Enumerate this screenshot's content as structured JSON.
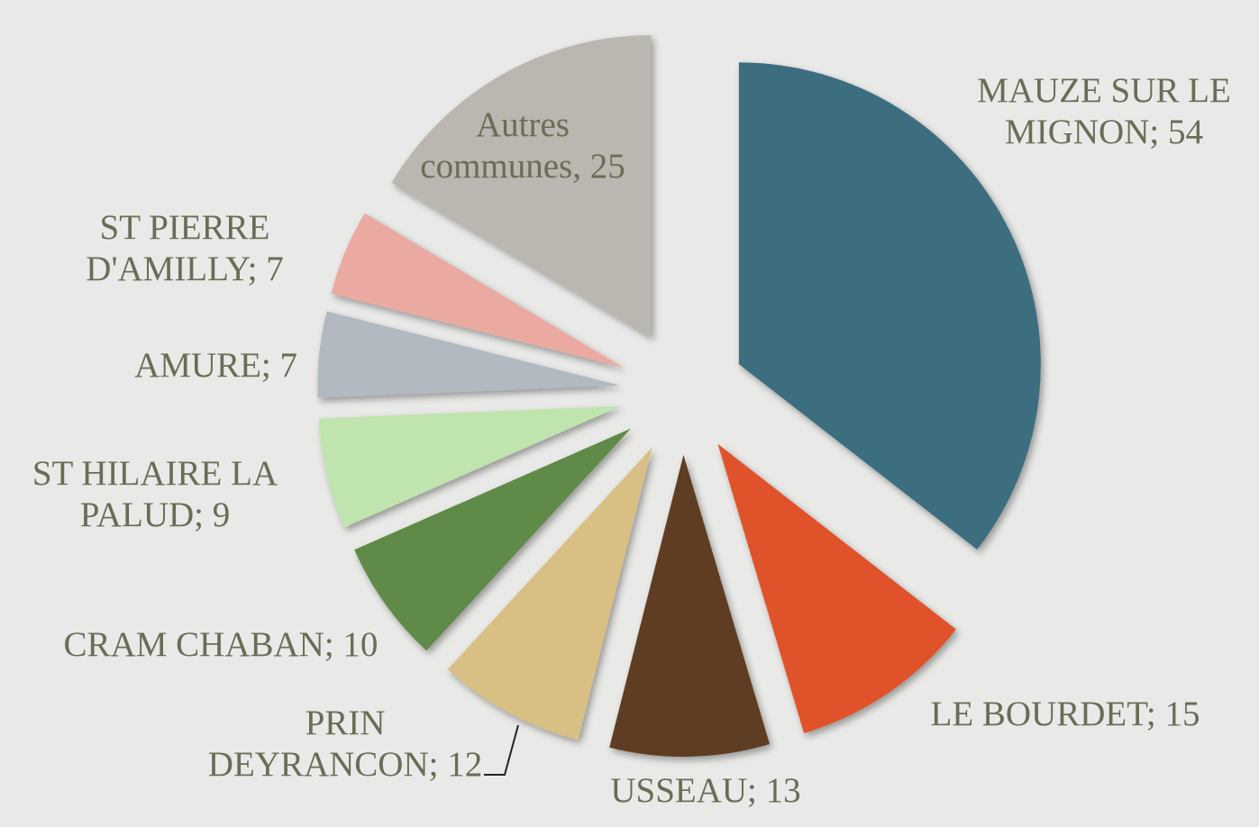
{
  "chart_data": {
    "type": "pie",
    "values": [
      54,
      15,
      13,
      12,
      10,
      9,
      7,
      7,
      25
    ],
    "value_labels": [
      "MAUZE SUR LE MIGNON; 54",
      "LE BOURDET; 15",
      "USSEAU; 13",
      "PRIN DEYRANCON; 12",
      "CRAM CHABAN; 10",
      "ST HILAIRE LA PALUD; 9",
      "AMURE; 7",
      "ST PIERRE D'AMILLY; 7",
      "Autres communes, 25"
    ],
    "colors": [
      "#3d6e80",
      "#e0532b",
      "#5e3e22",
      "#d8c084",
      "#5f8a46",
      "#bfe4ad",
      "#b2b9c0",
      "#eaaaa2",
      "#bab6b0"
    ]
  }
}
